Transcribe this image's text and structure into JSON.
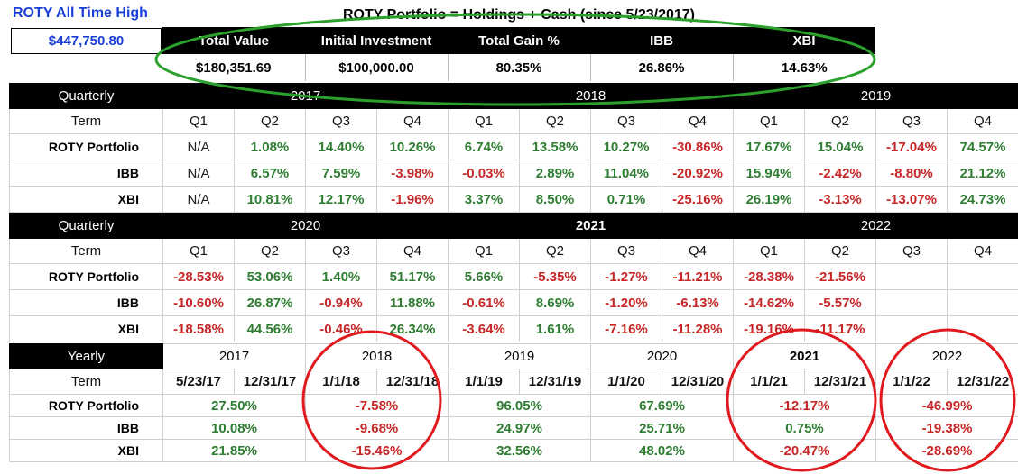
{
  "ath": {
    "label": "ROTY All Time High",
    "value": "$447,750.80"
  },
  "summary": {
    "title": "ROTY Portfolio = Holdings + Cash (since 5/23/2017)",
    "headers": [
      "Total Value",
      "Initial Investment",
      "Total Gain %",
      "IBB",
      "XBI"
    ],
    "values": [
      "$180,351.69",
      "$100,000.00",
      "80.35%",
      "26.86%",
      "14.63%"
    ]
  },
  "q1": {
    "header": "Quarterly",
    "years": [
      "2017",
      "2018",
      "2019"
    ],
    "term_label": "Term",
    "quarters": [
      "Q1",
      "Q2",
      "Q3",
      "Q4",
      "Q1",
      "Q2",
      "Q3",
      "Q4",
      "Q1",
      "Q2",
      "Q3",
      "Q4"
    ],
    "rows": [
      {
        "label": "ROTY Portfolio",
        "values": [
          "N/A",
          "1.08%",
          "14.40%",
          "10.26%",
          "6.74%",
          "13.58%",
          "10.27%",
          "-30.86%",
          "17.67%",
          "15.04%",
          "-17.04%",
          "74.57%"
        ]
      },
      {
        "label": "IBB",
        "values": [
          "N/A",
          "6.57%",
          "7.59%",
          "-3.98%",
          "-0.03%",
          "2.89%",
          "11.04%",
          "-20.92%",
          "15.94%",
          "-2.42%",
          "-8.80%",
          "21.12%"
        ]
      },
      {
        "label": "XBI",
        "values": [
          "N/A",
          "10.81%",
          "12.17%",
          "-1.96%",
          "3.37%",
          "8.50%",
          "0.71%",
          "-25.16%",
          "26.19%",
          "-3.13%",
          "-13.07%",
          "24.73%"
        ]
      }
    ]
  },
  "q2": {
    "header": "Quarterly",
    "years": [
      "2020",
      "2021",
      "2022"
    ],
    "term_label": "Term",
    "quarters": [
      "Q1",
      "Q2",
      "Q3",
      "Q4",
      "Q1",
      "Q2",
      "Q3",
      "Q4",
      "Q1",
      "Q2",
      "Q3",
      "Q4"
    ],
    "rows": [
      {
        "label": "ROTY Portfolio",
        "values": [
          "-28.53%",
          "53.06%",
          "1.40%",
          "51.17%",
          "5.66%",
          "-5.35%",
          "-1.27%",
          "-11.21%",
          "-28.38%",
          "-21.56%",
          "",
          ""
        ]
      },
      {
        "label": "IBB",
        "values": [
          "-10.60%",
          "26.87%",
          "-0.94%",
          "11.88%",
          "-0.61%",
          "8.69%",
          "-1.20%",
          "-6.13%",
          "-14.62%",
          "-5.57%",
          "",
          ""
        ]
      },
      {
        "label": "XBI",
        "values": [
          "-18.58%",
          "44.56%",
          "-0.46%",
          "26.34%",
          "-3.64%",
          "1.61%",
          "-7.16%",
          "-11.28%",
          "-19.16%",
          "-11.17%",
          "",
          ""
        ]
      }
    ]
  },
  "yearly": {
    "header": "Yearly",
    "years": [
      "2017",
      "2018",
      "2019",
      "2020",
      "2021",
      "2022"
    ],
    "term_label": "Term",
    "terms": [
      "5/23/17",
      "12/31/17",
      "1/1/18",
      "12/31/18",
      "1/1/19",
      "12/31/19",
      "1/1/20",
      "12/31/20",
      "1/1/21",
      "12/31/21",
      "1/1/22",
      "12/31/22"
    ],
    "rows": [
      {
        "label": "ROTY Portfolio",
        "values": [
          "27.50%",
          "-7.58%",
          "96.05%",
          "67.69%",
          "-12.17%",
          "-46.99%"
        ]
      },
      {
        "label": "IBB",
        "values": [
          "10.08%",
          "-9.68%",
          "24.97%",
          "25.71%",
          "0.75%",
          "-19.38%"
        ]
      },
      {
        "label": "XBI",
        "values": [
          "21.85%",
          "-15.46%",
          "32.56%",
          "48.02%",
          "-20.47%",
          "-28.69%"
        ]
      }
    ]
  },
  "colors": {
    "positive": "#2e7d32",
    "negative": "#c62828",
    "ath_blue": "#1a3fd6",
    "green_circle": "#2ca02c",
    "red_circle": "#e0191e"
  }
}
